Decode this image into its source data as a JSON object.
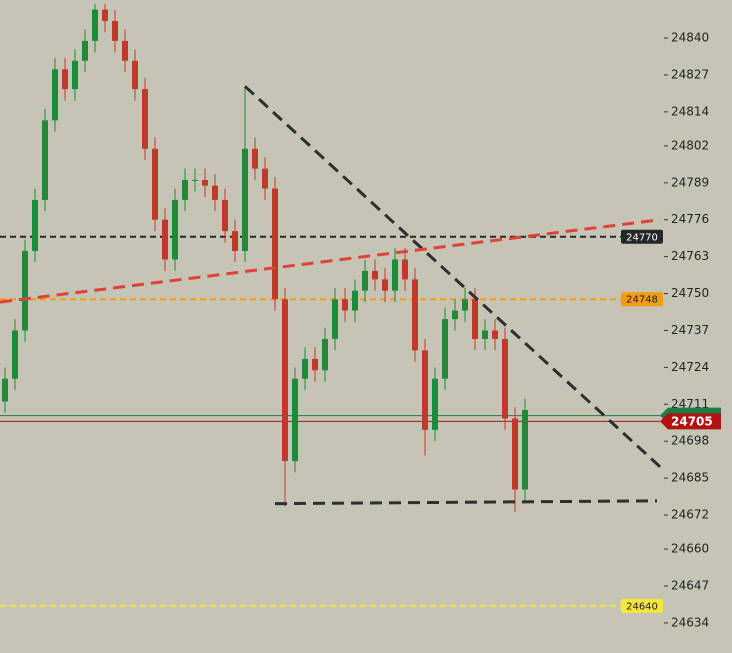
{
  "chart_data": {
    "type": "candlestick",
    "ylim": [
      24623.4,
      24853.4
    ],
    "xlim": [
      -0.5,
      65.5
    ],
    "yticks": [
      24840,
      24827,
      24814,
      24802,
      24789,
      24776,
      24763,
      24750,
      24737,
      24724,
      24711,
      24698,
      24685,
      24672,
      24660,
      24647,
      24634
    ],
    "up_color": "#1e8a3a",
    "down_color": "#c0392b",
    "candles": {
      "open": [
        24712,
        24720,
        24737,
        24765,
        24783,
        24811,
        24829,
        24822,
        24832,
        24839,
        24850,
        24846,
        24839,
        24832,
        24822,
        24801,
        24776,
        24762,
        24783,
        24790,
        24790,
        24788,
        24783,
        24772,
        24765,
        24801,
        24794,
        24787,
        24748,
        24691,
        24720,
        24727,
        24723,
        24734,
        24748,
        24744,
        24751,
        24758,
        24755,
        24751,
        24762,
        24755,
        24730,
        24702,
        24720,
        24741,
        24744,
        24748,
        24734,
        24737,
        24734,
        24706,
        24681
      ],
      "high": [
        24724,
        24741,
        24769,
        24787,
        24815,
        24833,
        24833,
        24836,
        24843,
        24852,
        24852,
        24850,
        24843,
        24836,
        24826,
        24805,
        24780,
        24787,
        24794,
        24794,
        24794,
        24792,
        24787,
        24776,
        24823,
        24805,
        24798,
        24791,
        24752,
        24724,
        24731,
        24731,
        24738,
        24752,
        24752,
        24755,
        24762,
        24762,
        24759,
        24766,
        24766,
        24759,
        24734,
        24724,
        24745,
        24748,
        24752,
        24752,
        24741,
        24741,
        24738,
        24710,
        24713
      ],
      "low": [
        24708,
        24716,
        24733,
        24761,
        24779,
        24807,
        24818,
        24818,
        24828,
        24835,
        24842,
        24835,
        24828,
        24818,
        24797,
        24772,
        24758,
        24758,
        24779,
        24786,
        24784,
        24779,
        24768,
        24761,
        24761,
        24790,
        24783,
        24744,
        24675,
        24687,
        24716,
        24719,
        24719,
        24730,
        24740,
        24740,
        24747,
        24751,
        24747,
        24747,
        24751,
        24726,
        24693,
        24698,
        24716,
        24737,
        24740,
        24730,
        24730,
        24730,
        24702,
        24673,
        24677
      ],
      "close": [
        24720,
        24737,
        24765,
        24783,
        24811,
        24829,
        24822,
        24832,
        24839,
        24850,
        24846,
        24839,
        24832,
        24822,
        24801,
        24776,
        24762,
        24783,
        24790,
        24790,
        24788,
        24783,
        24772,
        24765,
        24801,
        24794,
        24787,
        24748,
        24691,
        24720,
        24727,
        24723,
        24734,
        24748,
        24744,
        24751,
        24758,
        24755,
        24751,
        24762,
        24755,
        24730,
        24702,
        24720,
        24741,
        24744,
        24748,
        24734,
        24737,
        24734,
        24706,
        24681,
        24709
      ]
    },
    "levels": [
      {
        "value": 24770,
        "color": "#23272a",
        "text_color": "#ffffff"
      },
      {
        "value": 24748,
        "color": "#f39c12",
        "text_color": "#222222"
      },
      {
        "value": 24640,
        "color": "#f5e63c",
        "text_color": "#222222"
      }
    ],
    "price_lines": [
      {
        "value": 24707,
        "color": "#1e7a46",
        "tag": false
      },
      {
        "value": 24705,
        "color": "#b31212",
        "tag": true
      }
    ],
    "trend_lines": [
      {
        "color": "#2b2f33",
        "start": [
          24,
          24823
        ],
        "end": [
          65.5,
          24689
        ]
      },
      {
        "color": "#e0403a",
        "start": [
          -0.5,
          24747
        ],
        "end": [
          65.5,
          24776
        ]
      },
      {
        "color": "#2b2f33",
        "start": [
          27,
          24676
        ],
        "end": [
          65.2,
          24677
        ]
      }
    ]
  }
}
